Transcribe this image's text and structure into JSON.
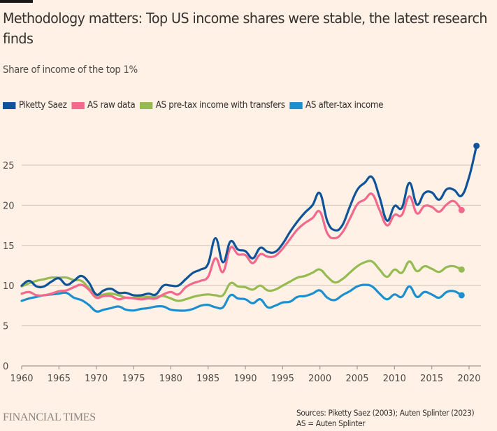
{
  "header": {
    "title": "Methodology matters: Top US income shares were stable, the latest research finds",
    "subtitle": "Share of income of the top 1%"
  },
  "footer": {
    "brand": "FINANCIAL TIMES",
    "source_line1": "Sources: Piketty Saez (2003); Auten Splinter (2023)",
    "source_line2": "AS = Auten Splinter"
  },
  "chart_data": {
    "type": "line",
    "title": "Methodology matters: Top US income shares were stable, the latest research finds",
    "subtitle": "Share of income of the top 1%",
    "xlabel": "",
    "ylabel": "",
    "xlim": [
      1960,
      2021
    ],
    "ylim": [
      0,
      28
    ],
    "x_ticks": [
      1960,
      1965,
      1970,
      1975,
      1980,
      1985,
      1990,
      1995,
      2000,
      2005,
      2010,
      2015,
      2020
    ],
    "y_ticks": [
      0,
      5,
      10,
      15,
      20,
      25
    ],
    "grid": "horizontal",
    "legend_position": "top-left",
    "series": [
      {
        "name": "Piketty Saez",
        "color": "#0f5499",
        "start_year": 1960,
        "end_marker": true,
        "values": [
          10.0,
          10.6,
          9.9,
          9.9,
          10.5,
          10.9,
          10.1,
          10.6,
          11.2,
          10.4,
          8.9,
          9.4,
          9.6,
          9.1,
          9.1,
          8.8,
          8.8,
          9.0,
          8.9,
          10.0,
          10.0,
          10.0,
          10.8,
          11.6,
          12.0,
          12.7,
          15.9,
          12.9,
          15.5,
          14.5,
          14.3,
          13.4,
          14.7,
          14.2,
          14.2,
          15.2,
          16.7,
          18.0,
          19.1,
          20.0,
          21.5,
          18.0,
          16.9,
          17.5,
          19.8,
          21.9,
          22.8,
          23.5,
          21.0,
          18.1,
          19.9,
          19.7,
          22.8,
          20.1,
          21.5,
          21.6,
          20.7,
          22.0,
          21.9,
          21.2,
          23.5,
          27.4
        ]
      },
      {
        "name": "AS raw data",
        "color": "#f2698d",
        "start_year": 1960,
        "end_marker": true,
        "values": [
          9.0,
          9.2,
          8.8,
          8.8,
          9.0,
          9.3,
          9.4,
          9.8,
          10.1,
          9.5,
          8.5,
          8.7,
          8.7,
          8.3,
          8.5,
          8.4,
          8.3,
          8.4,
          8.4,
          8.9,
          9.2,
          8.9,
          9.8,
          10.3,
          10.6,
          11.1,
          13.4,
          11.7,
          14.7,
          13.9,
          13.8,
          12.8,
          13.9,
          13.6,
          13.7,
          14.6,
          15.8,
          17.0,
          17.8,
          18.4,
          19.2,
          16.5,
          15.9,
          16.6,
          18.3,
          20.1,
          20.7,
          21.4,
          19.4,
          17.5,
          18.8,
          18.8,
          21.1,
          19.0,
          19.9,
          19.8,
          19.2,
          20.1,
          20.5,
          19.4
        ]
      },
      {
        "name": "AS pre-tax income with transfers",
        "color": "#96bb50",
        "start_year": 1960,
        "end_marker": true,
        "values": [
          9.9,
          10.3,
          10.6,
          10.8,
          11.0,
          11.0,
          11.0,
          10.7,
          10.6,
          9.7,
          8.7,
          8.9,
          9.0,
          8.8,
          8.5,
          8.5,
          8.6,
          8.6,
          8.6,
          8.7,
          8.4,
          8.1,
          8.3,
          8.6,
          8.8,
          8.9,
          8.8,
          8.8,
          10.3,
          9.9,
          9.8,
          9.5,
          10.0,
          9.4,
          9.5,
          10.0,
          10.5,
          11.0,
          11.2,
          11.6,
          12.0,
          11.1,
          10.4,
          10.8,
          11.6,
          12.4,
          12.9,
          13.0,
          12.0,
          11.1,
          12.0,
          11.6,
          13.0,
          11.8,
          12.4,
          12.1,
          11.7,
          12.3,
          12.4,
          12.0
        ]
      },
      {
        "name": "AS after-tax income",
        "color": "#1e8fce",
        "start_year": 1960,
        "end_marker": true,
        "values": [
          8.1,
          8.4,
          8.6,
          8.8,
          8.9,
          9.0,
          9.1,
          8.5,
          8.2,
          7.6,
          6.8,
          7.0,
          7.2,
          7.4,
          7.0,
          6.9,
          7.1,
          7.2,
          7.4,
          7.4,
          7.0,
          6.9,
          6.9,
          7.1,
          7.5,
          7.6,
          7.3,
          7.3,
          8.8,
          8.4,
          8.3,
          7.8,
          8.3,
          7.3,
          7.5,
          7.9,
          8.0,
          8.6,
          8.7,
          9.0,
          9.4,
          8.5,
          8.2,
          8.8,
          9.3,
          9.9,
          10.1,
          9.9,
          9.0,
          8.3,
          8.9,
          8.6,
          9.9,
          8.6,
          9.2,
          8.9,
          8.5,
          9.2,
          9.3,
          8.8
        ]
      }
    ]
  }
}
